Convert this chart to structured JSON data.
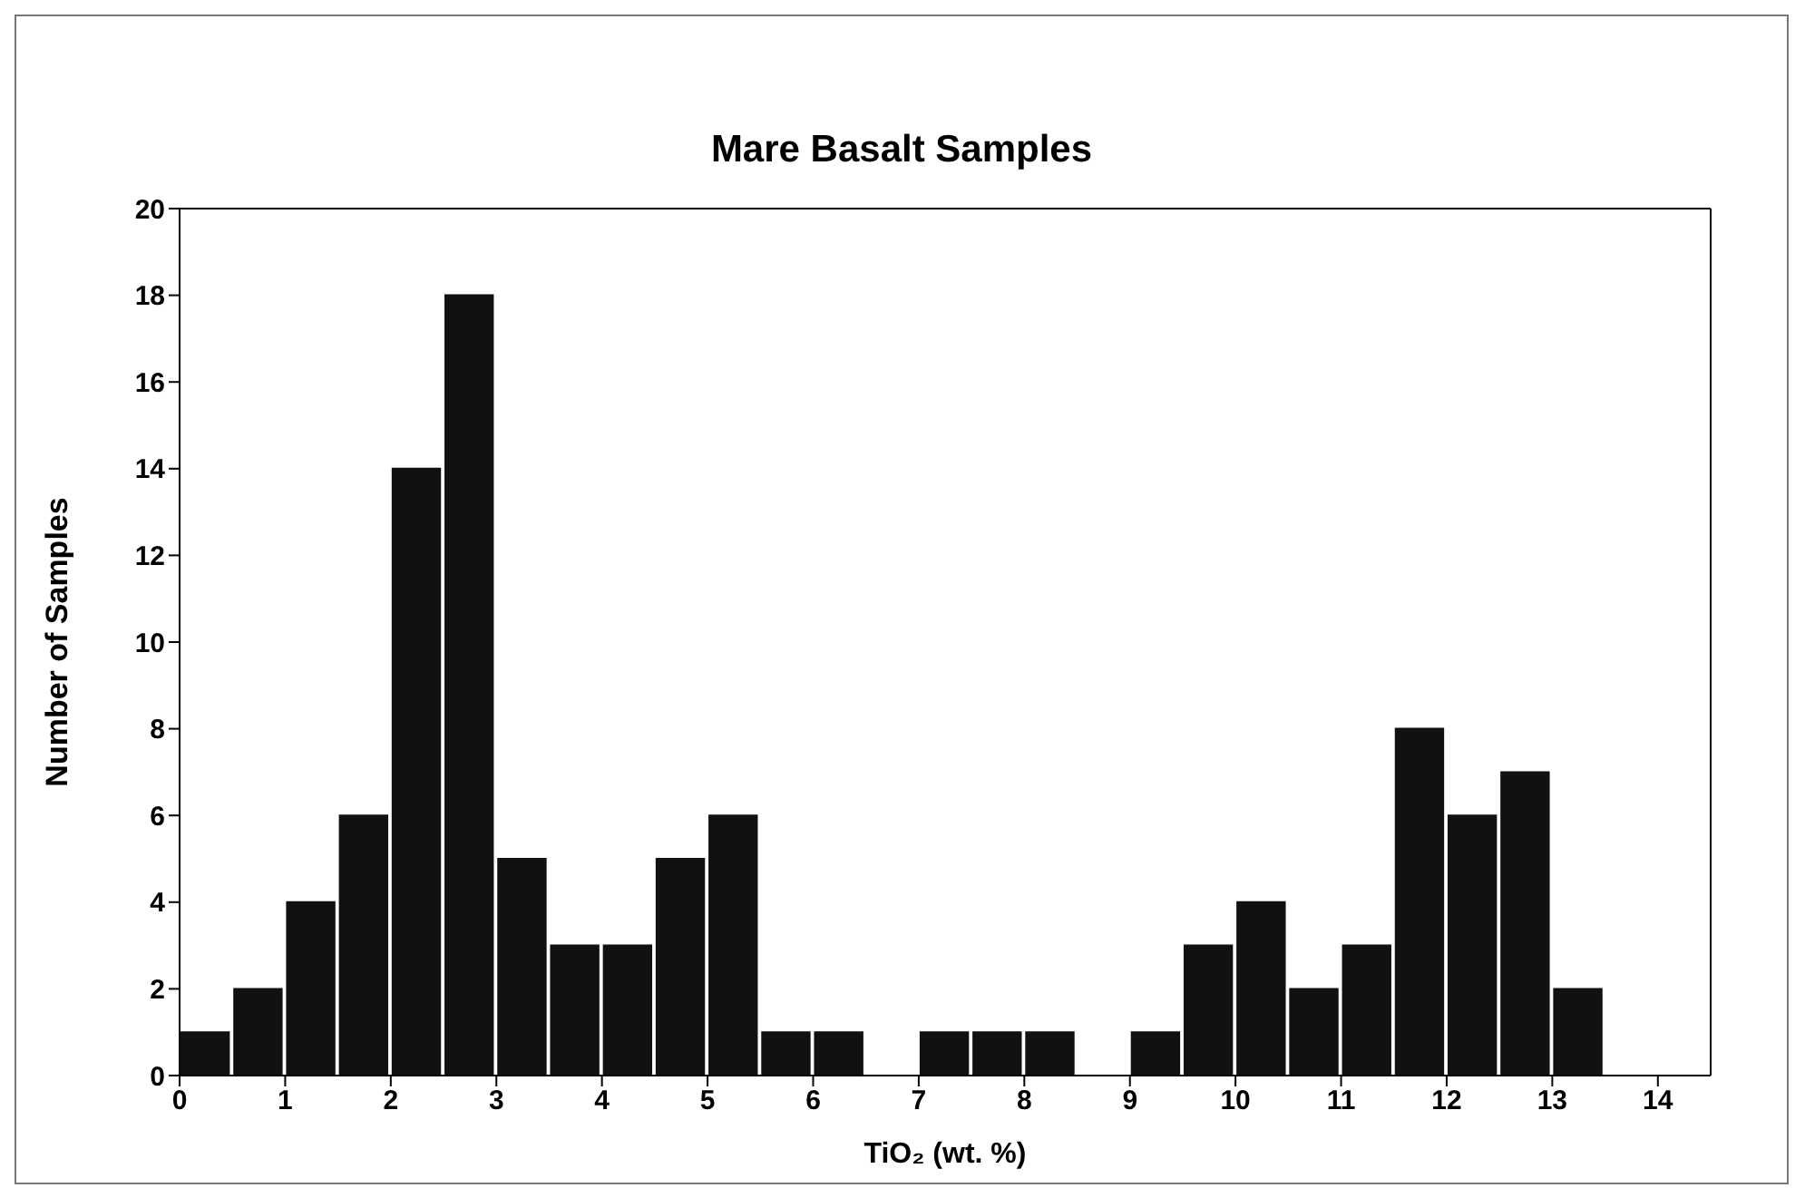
{
  "chart_data": {
    "type": "histogram",
    "title": "Mare Basalt Samples",
    "xlabel": "TiO₂ (wt. %)",
    "ylabel": "Number of Samples",
    "bins": [
      0,
      0.5,
      1,
      1.5,
      2,
      2.5,
      3,
      3.5,
      4,
      4.5,
      5,
      5.5,
      6,
      6.5,
      7,
      7.5,
      8,
      8.5,
      9,
      9.5,
      10,
      10.5,
      11,
      11.5,
      12,
      12.5,
      13,
      13.5,
      14,
      14.5
    ],
    "values": [
      1,
      2,
      4,
      6,
      14,
      18,
      5,
      3,
      3,
      5,
      6,
      1,
      1,
      0,
      1,
      1,
      1,
      0,
      1,
      3,
      4,
      2,
      3,
      8,
      6,
      7,
      2,
      0,
      0
    ],
    "color": "#111111",
    "xlim": [
      0,
      14.5
    ],
    "xticks": [
      0,
      1,
      2,
      3,
      4,
      5,
      6,
      7,
      8,
      9,
      10,
      11,
      12,
      13,
      14
    ],
    "ylim": [
      0,
      20
    ],
    "yticks": [
      0,
      2,
      4,
      6,
      8,
      10,
      12,
      14,
      16,
      18,
      20
    ],
    "grid": false,
    "legend": false
  }
}
